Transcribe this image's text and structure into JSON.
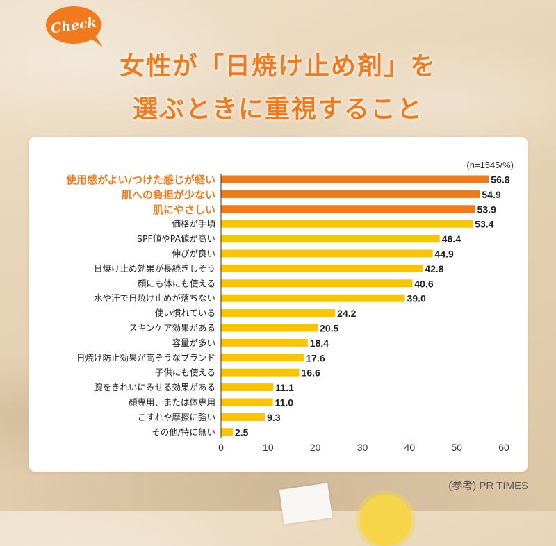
{
  "badge": {
    "label": "Check"
  },
  "title": {
    "line1": "女性が「日焼け止め剤」を",
    "line2": "選ぶときに重視すること"
  },
  "source": "(参考) PR TIMES",
  "colors": {
    "accent": "#f07a1c",
    "bar_highlight": "#f07a1c",
    "bar_normal": "#f9c400",
    "card": "#ffffff"
  },
  "chart_data": {
    "type": "bar",
    "orientation": "horizontal",
    "note": "(n=1545/%)",
    "categories": [
      "使用感がよい/つけた感じが軽い",
      "肌への負担が少ない",
      "肌にやさしい",
      "価格が手頃",
      "SPF値やPA値が高い",
      "伸びが良い",
      "日焼け止め効果が長続きしそう",
      "顔にも体にも使える",
      "水や汗で日焼け止めが落ちない",
      "使い慣れている",
      "スキンケア効果がある",
      "容量が多い",
      "日焼け防止効果が高そうなブランド",
      "子供にも使える",
      "腕をきれいにみせる効果がある",
      "顔専用、または体専用",
      "こすれや摩擦に強い",
      "その他/特に無い"
    ],
    "values": [
      56.8,
      54.9,
      53.9,
      53.4,
      46.4,
      44.9,
      42.8,
      40.6,
      39.0,
      24.2,
      20.5,
      18.4,
      17.6,
      16.6,
      11.1,
      11.0,
      9.3,
      2.5
    ],
    "value_labels": [
      "56.8",
      "54.9",
      "53.9",
      "53.4",
      "46.4",
      "44.9",
      "42.8",
      "40.6",
      "39.0",
      "24.2",
      "20.5",
      "18.4",
      "17.6",
      "16.6",
      "11.1",
      "11.0",
      "9.3",
      "2.5"
    ],
    "highlight_count": 3,
    "xlim": [
      0,
      60
    ],
    "xticks": [
      "0",
      "10",
      "20",
      "30",
      "40",
      "50",
      "60"
    ],
    "grid": false,
    "legend": "none"
  }
}
